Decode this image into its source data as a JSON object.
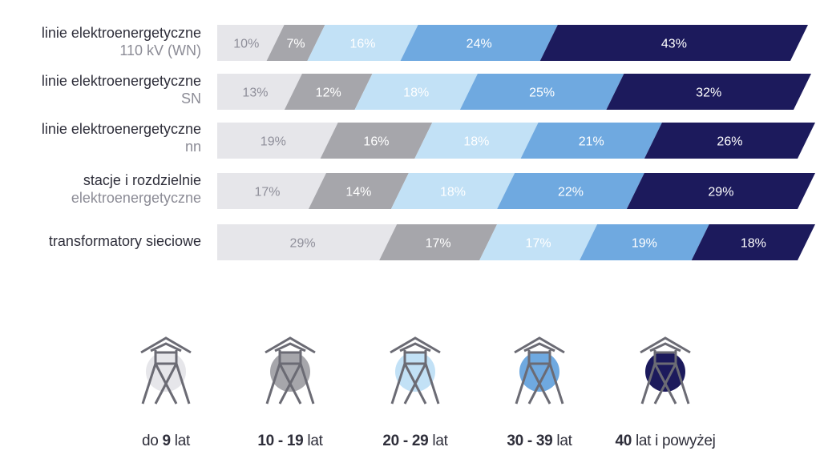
{
  "chart_data": {
    "type": "bar",
    "stacked": "percent",
    "orientation": "horizontal",
    "categories": [
      {
        "line1": "linie elektroenergetyczne",
        "line2": "110 kV (WN)"
      },
      {
        "line1": "linie elektroenergetyczne",
        "line2": "SN"
      },
      {
        "line1": "linie elektroenergetyczne",
        "line2": "nn"
      },
      {
        "line1": "stacje i rozdzielnie",
        "line2": "elektroenergetyczne"
      },
      {
        "line1": "transformatory sieciowe",
        "line2": ""
      }
    ],
    "series": [
      {
        "key": "s1",
        "color": "#e6e6ea",
        "text_color": "#8f8f9a",
        "values": [
          10,
          13,
          19,
          17,
          29
        ],
        "labels": [
          "10%",
          "13%",
          "19%",
          "17%",
          "29%"
        ]
      },
      {
        "key": "s2",
        "color": "#a6a6ab",
        "text_color": "#ffffff",
        "values": [
          7,
          12,
          16,
          14,
          17
        ],
        "labels": [
          "7%",
          "12%",
          "16%",
          "14%",
          "17%"
        ]
      },
      {
        "key": "s3",
        "color": "#c2e1f6",
        "text_color": "#ffffff",
        "values": [
          16,
          18,
          18,
          18,
          17
        ],
        "labels": [
          "16%",
          "18%",
          "18%",
          "18%",
          "17%"
        ]
      },
      {
        "key": "s4",
        "color": "#6fa9e0",
        "text_color": "#ffffff",
        "values": [
          24,
          25,
          21,
          22,
          19
        ],
        "labels": [
          "24%",
          "25%",
          "21%",
          "22%",
          "19%"
        ]
      },
      {
        "key": "s5",
        "color": "#1c1a5c",
        "text_color": "#ffffff",
        "values": [
          43,
          32,
          26,
          29,
          18
        ],
        "labels": [
          "43%",
          "32%",
          "26%",
          "29%",
          "18%"
        ]
      }
    ],
    "legend_placement": "bottom"
  },
  "legend": [
    {
      "pre": "do ",
      "bold": "9",
      "post": " lat",
      "color": "#e6e6ea",
      "icon": "power-pylon-icon"
    },
    {
      "pre": "",
      "bold": "10 - 19",
      "post": " lat",
      "color": "#a6a6ab",
      "icon": "power-pylon-icon"
    },
    {
      "pre": "",
      "bold": "20 - 29",
      "post": " lat",
      "color": "#c2e1f6",
      "icon": "power-pylon-icon"
    },
    {
      "pre": "",
      "bold": "30 - 39",
      "post": " lat",
      "color": "#6fa9e0",
      "icon": "power-pylon-icon"
    },
    {
      "pre": "",
      "bold": "40",
      "post": " lat i powyżej",
      "color": "#1c1a5c",
      "icon": "power-pylon-icon"
    }
  ]
}
